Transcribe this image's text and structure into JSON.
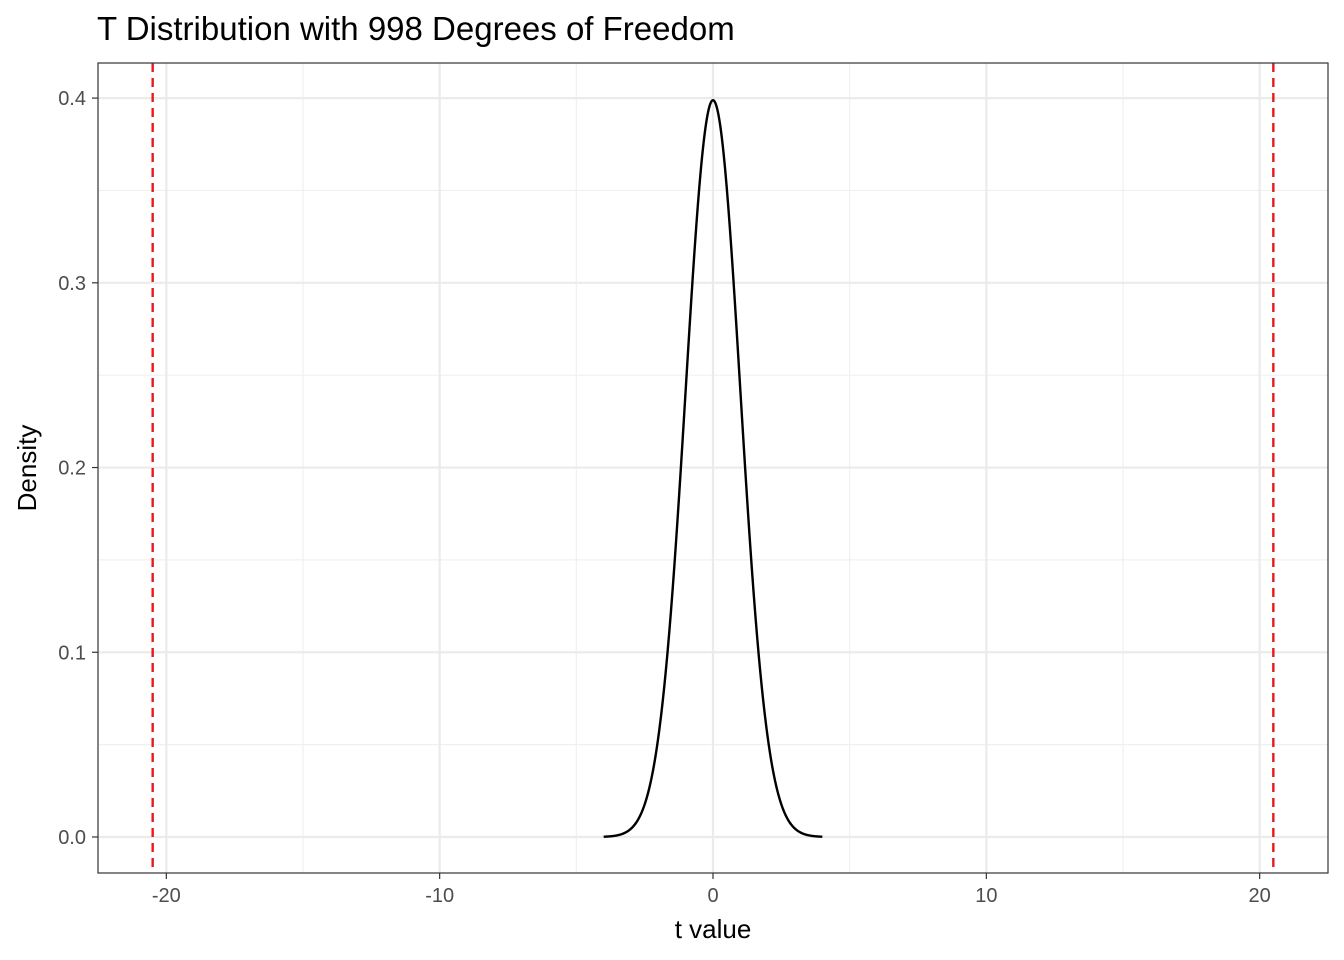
{
  "chart_data": {
    "type": "line",
    "title": "T Distribution with 998 Degrees of Freedom",
    "xlabel": "t value",
    "ylabel": "Density",
    "xlim": [
      -22.5,
      22.5
    ],
    "ylim": [
      -0.0195,
      0.419
    ],
    "x_ticks": [
      -20,
      -10,
      0,
      10,
      20
    ],
    "x_tick_labels": [
      "-20",
      "-10",
      "0",
      "10",
      "20"
    ],
    "y_ticks": [
      0.0,
      0.1,
      0.2,
      0.3,
      0.4
    ],
    "y_tick_labels": [
      "0.0",
      "0.1",
      "0.2",
      "0.3",
      "0.4"
    ],
    "grid": true,
    "series": [
      {
        "degrees_of_freedom": 998,
        "x_range": [
          -4,
          4
        ],
        "color": "#000000"
      }
    ],
    "reference_lines": [
      {
        "x": -20.5,
        "color": "#e41a1c",
        "style": "dashed"
      },
      {
        "x": 20.5,
        "color": "#e41a1c",
        "style": "dashed"
      }
    ]
  }
}
